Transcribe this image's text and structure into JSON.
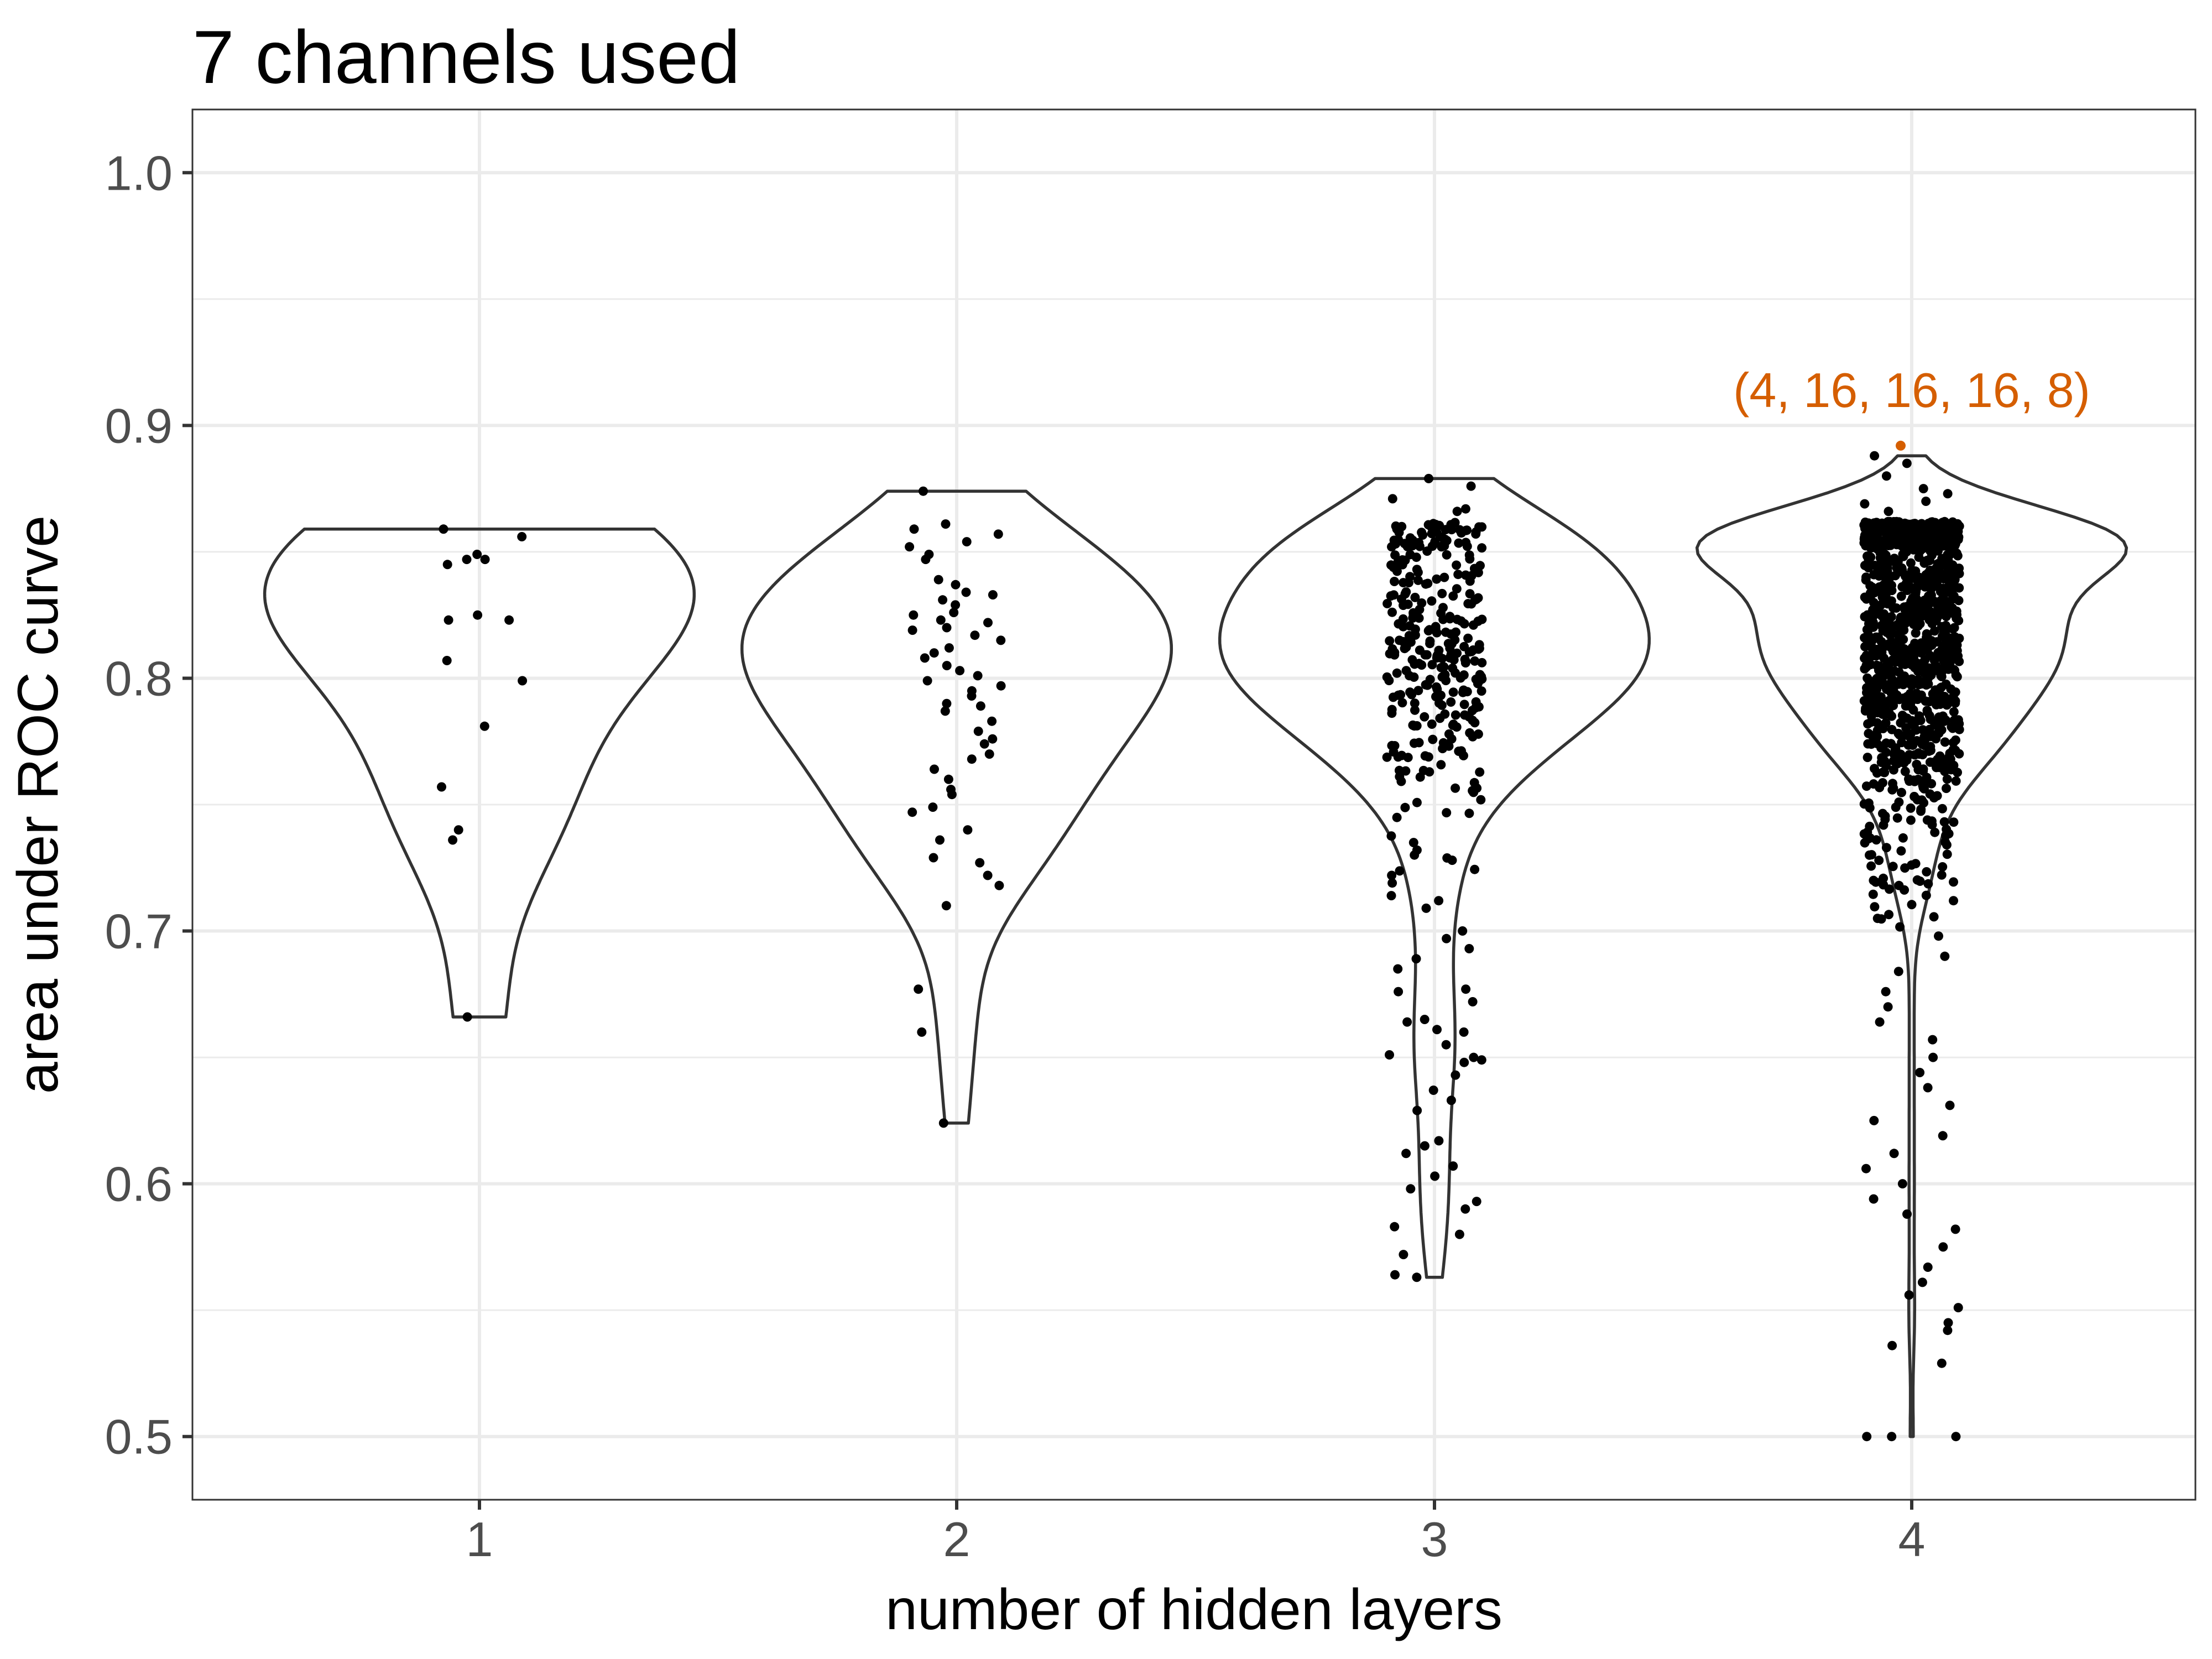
{
  "chart_data": {
    "type": "violin",
    "title": "7 channels used",
    "xlabel": "number of hidden layers",
    "ylabel": "area under ROC curve",
    "categories": [
      "1",
      "2",
      "3",
      "4"
    ],
    "ylim": [
      0.475,
      1.025
    ],
    "yticks": [
      0.5,
      0.6,
      0.7,
      0.8,
      0.9,
      1.0
    ],
    "ytick_labels": [
      "0.5",
      "0.6",
      "0.7",
      "0.8",
      "0.9",
      "1.0"
    ],
    "grid": true,
    "colors": {
      "points": "#000000",
      "violin_outline": "#333333",
      "highlight": "#d55e00",
      "grid": "#ebebeb"
    },
    "highlight": {
      "category": "4",
      "value": 0.892,
      "label": "(4, 16, 16, 16, 8)"
    },
    "groups": [
      {
        "category": "1",
        "min": 0.666,
        "max": 0.859,
        "values": [
          0.859,
          0.856,
          0.849,
          0.847,
          0.847,
          0.845,
          0.825,
          0.823,
          0.823,
          0.807,
          0.799,
          0.781,
          0.757,
          0.74,
          0.736,
          0.666
        ]
      },
      {
        "category": "2",
        "min": 0.624,
        "max": 0.874,
        "values": [
          0.874,
          0.861,
          0.859,
          0.857,
          0.854,
          0.852,
          0.849,
          0.847,
          0.839,
          0.837,
          0.834,
          0.833,
          0.831,
          0.829,
          0.826,
          0.825,
          0.823,
          0.822,
          0.82,
          0.819,
          0.817,
          0.815,
          0.812,
          0.81,
          0.808,
          0.805,
          0.803,
          0.801,
          0.799,
          0.797,
          0.795,
          0.793,
          0.79,
          0.789,
          0.787,
          0.783,
          0.779,
          0.776,
          0.774,
          0.77,
          0.768,
          0.764,
          0.76,
          0.756,
          0.754,
          0.749,
          0.747,
          0.74,
          0.736,
          0.729,
          0.727,
          0.722,
          0.718,
          0.71,
          0.677,
          0.66,
          0.624
        ]
      },
      {
        "category": "3",
        "min": 0.563,
        "max": 0.879,
        "densityPeak": 0.816,
        "densitySpread": 0.038,
        "coreCount": 300,
        "extraValues": [
          0.879,
          0.876,
          0.871,
          0.867,
          0.866,
          0.735,
          0.732,
          0.728,
          0.722,
          0.719,
          0.714,
          0.712,
          0.709,
          0.7,
          0.697,
          0.693,
          0.689,
          0.685,
          0.677,
          0.676,
          0.672,
          0.665,
          0.664,
          0.661,
          0.66,
          0.655,
          0.651,
          0.65,
          0.649,
          0.648,
          0.643,
          0.637,
          0.633,
          0.629,
          0.617,
          0.615,
          0.612,
          0.607,
          0.603,
          0.598,
          0.593,
          0.59,
          0.583,
          0.58,
          0.572,
          0.564,
          0.563
        ]
      },
      {
        "category": "4",
        "min": 0.5,
        "max": 0.888,
        "densityPeak": 0.82,
        "densitySpread": 0.045,
        "coreCount": 1150,
        "extraValues": [
          0.888,
          0.885,
          0.88,
          0.875,
          0.873,
          0.87,
          0.869,
          0.866,
          0.72,
          0.712,
          0.705,
          0.698,
          0.69,
          0.684,
          0.676,
          0.67,
          0.664,
          0.657,
          0.65,
          0.644,
          0.638,
          0.631,
          0.625,
          0.619,
          0.612,
          0.606,
          0.6,
          0.594,
          0.588,
          0.582,
          0.575,
          0.567,
          0.561,
          0.556,
          0.551,
          0.545,
          0.542,
          0.536,
          0.529,
          0.5,
          0.5,
          0.5
        ]
      }
    ]
  }
}
